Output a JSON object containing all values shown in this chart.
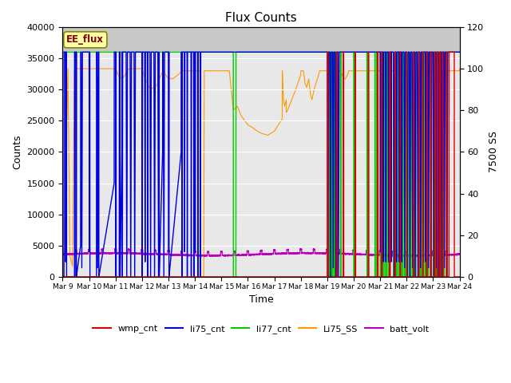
{
  "title": "Flux Counts",
  "xlabel": "Time",
  "ylabel_left": "Counts",
  "ylabel_right": "7500 SS",
  "annotation": "EE_flux",
  "ylim_left": [
    0,
    40000
  ],
  "ylim_right": [
    0,
    120
  ],
  "yticks_left": [
    0,
    5000,
    10000,
    15000,
    20000,
    25000,
    30000,
    35000,
    40000
  ],
  "yticks_right": [
    0,
    20,
    40,
    60,
    80,
    100,
    120
  ],
  "colors": {
    "wmp_cnt": "#dd0000",
    "li75_cnt": "#0000dd",
    "li77_cnt": "#00cc00",
    "Li75_SS": "#ff9900",
    "batt_volt": "#bb00bb"
  },
  "legend_labels": [
    "wmp_cnt",
    "li75_cnt",
    "li77_cnt",
    "Li75_SS",
    "batt_volt"
  ],
  "plot_bg_color": "#e8e8e8",
  "top_band_color": "#d0d0d0"
}
